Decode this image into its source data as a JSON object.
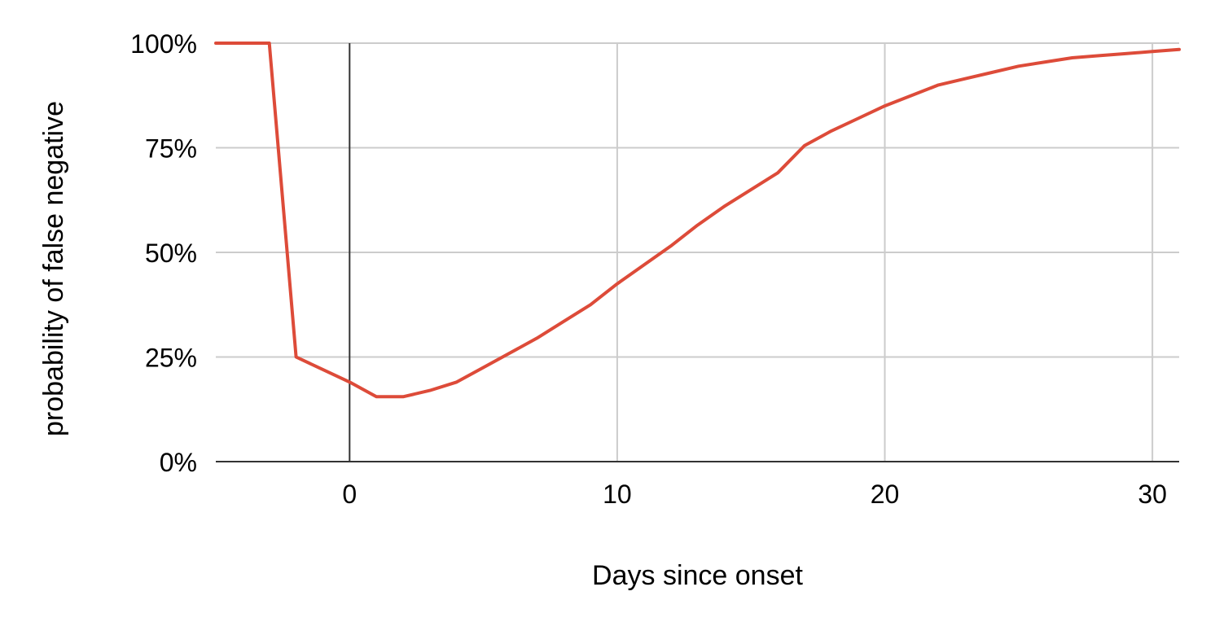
{
  "chart_data": {
    "type": "line",
    "title": "",
    "xlabel": "Days since onset",
    "ylabel": "probability of false negative",
    "xlim": [
      -5,
      31
    ],
    "ylim": [
      0,
      1
    ],
    "x_ticks": [
      0,
      10,
      20,
      30
    ],
    "x_tick_labels": [
      "0",
      "10",
      "20",
      "30"
    ],
    "y_ticks": [
      0,
      0.25,
      0.5,
      0.75,
      1.0
    ],
    "y_tick_labels": [
      "0%",
      "25%",
      "50%",
      "75%",
      "100%"
    ],
    "grid": true,
    "legend": "none",
    "line_color": "#dd4b39",
    "series": [
      {
        "x": [
          -5,
          -3,
          -2,
          0,
          1,
          2,
          3,
          4,
          5,
          6,
          7,
          8,
          9,
          10,
          11,
          12,
          13,
          14,
          15,
          16,
          17,
          18,
          19,
          20,
          21,
          22,
          23,
          24,
          25,
          26,
          27,
          28,
          29,
          30,
          31
        ],
        "y": [
          1.0,
          1.0,
          0.25,
          0.19,
          0.155,
          0.155,
          0.17,
          0.19,
          0.225,
          0.26,
          0.295,
          0.335,
          0.375,
          0.425,
          0.47,
          0.515,
          0.565,
          0.61,
          0.65,
          0.69,
          0.755,
          0.79,
          0.82,
          0.85,
          0.875,
          0.9,
          0.915,
          0.93,
          0.945,
          0.955,
          0.965,
          0.97,
          0.975,
          0.98,
          0.985
        ]
      }
    ]
  }
}
